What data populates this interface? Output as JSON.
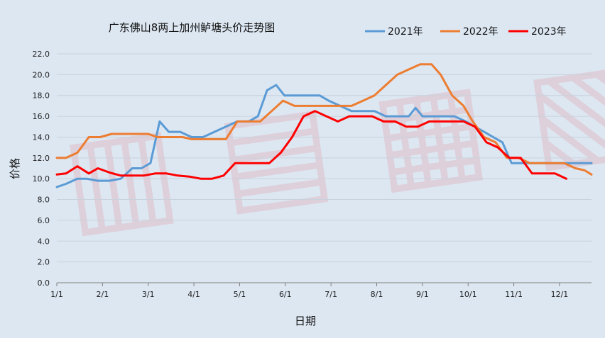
{
  "chart_data": {
    "type": "line",
    "title": "广东佛山8两上加州鲈塘头价走势图",
    "xlabel": "日期",
    "ylabel": "价格",
    "ylim": [
      0,
      22
    ],
    "yticks": [
      "0.0",
      "2.0",
      "4.0",
      "6.0",
      "8.0",
      "10.0",
      "12.0",
      "14.0",
      "16.0",
      "18.0",
      "20.0",
      "22.0"
    ],
    "xticks": [
      "1/1",
      "2/1",
      "3/1",
      "4/1",
      "5/1",
      "6/1",
      "7/1",
      "8/1",
      "9/1",
      "10/1",
      "11/1",
      "12/1"
    ],
    "xlim": [
      0,
      11.7
    ],
    "legend_position": "top-right",
    "grid": "horizontal",
    "series": [
      {
        "name": "2021年",
        "color": "#5b9bd5",
        "points": [
          [
            0,
            9.2
          ],
          [
            0.2,
            9.5
          ],
          [
            0.45,
            10
          ],
          [
            0.65,
            10
          ],
          [
            0.9,
            9.8
          ],
          [
            1.15,
            9.8
          ],
          [
            1.4,
            10
          ],
          [
            1.65,
            11
          ],
          [
            1.85,
            11
          ],
          [
            2.05,
            11.5
          ],
          [
            2.25,
            15.5
          ],
          [
            2.45,
            14.5
          ],
          [
            2.7,
            14.5
          ],
          [
            2.95,
            14
          ],
          [
            3.2,
            14
          ],
          [
            3.45,
            14.5
          ],
          [
            3.7,
            15
          ],
          [
            3.95,
            15.5
          ],
          [
            4.2,
            15.5
          ],
          [
            4.4,
            16
          ],
          [
            4.6,
            18.5
          ],
          [
            4.8,
            19
          ],
          [
            4.98,
            18
          ],
          [
            5.25,
            18
          ],
          [
            5.5,
            18
          ],
          [
            5.75,
            18
          ],
          [
            5.95,
            17.5
          ],
          [
            6.2,
            17
          ],
          [
            6.45,
            16.5
          ],
          [
            6.7,
            16.5
          ],
          [
            6.95,
            16.5
          ],
          [
            7.2,
            16
          ],
          [
            7.45,
            16
          ],
          [
            7.7,
            16
          ],
          [
            7.85,
            16.8
          ],
          [
            8,
            16
          ],
          [
            8.2,
            16
          ],
          [
            8.45,
            16
          ],
          [
            8.7,
            16
          ],
          [
            8.95,
            15.5
          ],
          [
            9.15,
            15
          ],
          [
            9.35,
            14.5
          ],
          [
            9.55,
            14
          ],
          [
            9.75,
            13.5
          ],
          [
            9.95,
            11.5
          ],
          [
            10.2,
            11.5
          ],
          [
            10.5,
            11.5
          ],
          [
            10.8,
            11.5
          ],
          [
            11.1,
            11.5
          ],
          [
            11.4,
            11.5
          ],
          [
            11.7,
            11.5
          ]
        ]
      },
      {
        "name": "2022年",
        "color": "#ed7d31",
        "points": [
          [
            0,
            12
          ],
          [
            0.2,
            12
          ],
          [
            0.45,
            12.5
          ],
          [
            0.7,
            14
          ],
          [
            0.95,
            14
          ],
          [
            1.2,
            14.3
          ],
          [
            1.5,
            14.3
          ],
          [
            1.75,
            14.3
          ],
          [
            2,
            14.3
          ],
          [
            2.2,
            14
          ],
          [
            2.5,
            14
          ],
          [
            2.75,
            14
          ],
          [
            2.95,
            13.8
          ],
          [
            3.25,
            13.8
          ],
          [
            3.5,
            13.8
          ],
          [
            3.7,
            13.8
          ],
          [
            3.95,
            15.5
          ],
          [
            4.2,
            15.5
          ],
          [
            4.45,
            15.5
          ],
          [
            4.7,
            16.5
          ],
          [
            4.95,
            17.5
          ],
          [
            5.2,
            17
          ],
          [
            5.45,
            17
          ],
          [
            5.7,
            17
          ],
          [
            5.95,
            17
          ],
          [
            6.2,
            17
          ],
          [
            6.45,
            17
          ],
          [
            6.7,
            17.5
          ],
          [
            6.95,
            18
          ],
          [
            7.2,
            19
          ],
          [
            7.45,
            20
          ],
          [
            7.7,
            20.5
          ],
          [
            7.95,
            21
          ],
          [
            8.2,
            21
          ],
          [
            8.4,
            20
          ],
          [
            8.65,
            18
          ],
          [
            8.9,
            17
          ],
          [
            9.1,
            15.5
          ],
          [
            9.35,
            14
          ],
          [
            9.6,
            13.5
          ],
          [
            9.85,
            12
          ],
          [
            10.1,
            12
          ],
          [
            10.35,
            11.5
          ],
          [
            10.6,
            11.5
          ],
          [
            10.85,
            11.5
          ],
          [
            11.1,
            11.5
          ],
          [
            11.35,
            11
          ],
          [
            11.55,
            10.8
          ],
          [
            11.7,
            10.4
          ]
        ]
      },
      {
        "name": "2023年",
        "color": "#ff0000",
        "points": [
          [
            0,
            10.4
          ],
          [
            0.2,
            10.5
          ],
          [
            0.45,
            11.2
          ],
          [
            0.7,
            10.5
          ],
          [
            0.9,
            11
          ],
          [
            1.15,
            10.6
          ],
          [
            1.4,
            10.3
          ],
          [
            1.65,
            10.3
          ],
          [
            1.9,
            10.3
          ],
          [
            2.15,
            10.5
          ],
          [
            2.4,
            10.5
          ],
          [
            2.65,
            10.3
          ],
          [
            2.9,
            10.2
          ],
          [
            3.15,
            10
          ],
          [
            3.4,
            10
          ],
          [
            3.65,
            10.3
          ],
          [
            3.9,
            11.5
          ],
          [
            4.15,
            11.5
          ],
          [
            4.4,
            11.5
          ],
          [
            4.65,
            11.5
          ],
          [
            4.9,
            12.5
          ],
          [
            5.15,
            14
          ],
          [
            5.4,
            16
          ],
          [
            5.65,
            16.5
          ],
          [
            5.9,
            16
          ],
          [
            6.15,
            15.5
          ],
          [
            6.4,
            16
          ],
          [
            6.65,
            16
          ],
          [
            6.9,
            16
          ],
          [
            7.15,
            15.5
          ],
          [
            7.4,
            15.5
          ],
          [
            7.65,
            15
          ],
          [
            7.9,
            15
          ],
          [
            8.15,
            15.5
          ],
          [
            8.4,
            15.5
          ],
          [
            8.65,
            15.5
          ],
          [
            8.9,
            15.5
          ],
          [
            9.15,
            15
          ],
          [
            9.4,
            13.5
          ],
          [
            9.65,
            13
          ],
          [
            9.9,
            12
          ],
          [
            10.15,
            12
          ],
          [
            10.4,
            10.5
          ],
          [
            10.65,
            10.5
          ],
          [
            10.9,
            10.5
          ],
          [
            11.15,
            10
          ]
        ]
      }
    ]
  }
}
